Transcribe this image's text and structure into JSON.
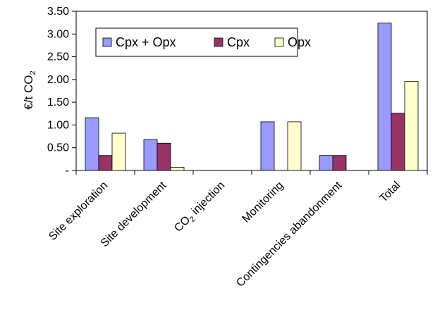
{
  "chart_data": {
    "type": "bar",
    "categories": [
      "Site exploration",
      "Site development",
      "CO2 injection",
      "Monitoring",
      "Contingencies abandonment",
      "Total"
    ],
    "series": [
      {
        "name": "Cpx + Opx",
        "values": [
          1.16,
          0.68,
          0,
          1.07,
          0.33,
          3.24
        ],
        "color": "#9999ff"
      },
      {
        "name": "Cpx",
        "values": [
          0.33,
          0.6,
          0,
          0,
          0.33,
          1.26
        ],
        "color": "#993366"
      },
      {
        "name": "Opx",
        "values": [
          0.82,
          0.07,
          0,
          1.07,
          0,
          1.96
        ],
        "color": "#ffffcc"
      }
    ],
    "ylabel": "€/t CO2",
    "ylim": [
      0,
      3.5
    ],
    "y_ticks": [
      {
        "value": 0,
        "label": "-"
      },
      {
        "value": 0.5,
        "label": "0.50"
      },
      {
        "value": 1.0,
        "label": "1.00"
      },
      {
        "value": 1.5,
        "label": "1.50"
      },
      {
        "value": 2.0,
        "label": "2.00"
      },
      {
        "value": 2.5,
        "label": "2.50"
      },
      {
        "value": 3.0,
        "label": "3.00"
      },
      {
        "value": 3.5,
        "label": "3.50"
      }
    ],
    "grid": false,
    "legend_position": "top-left"
  }
}
